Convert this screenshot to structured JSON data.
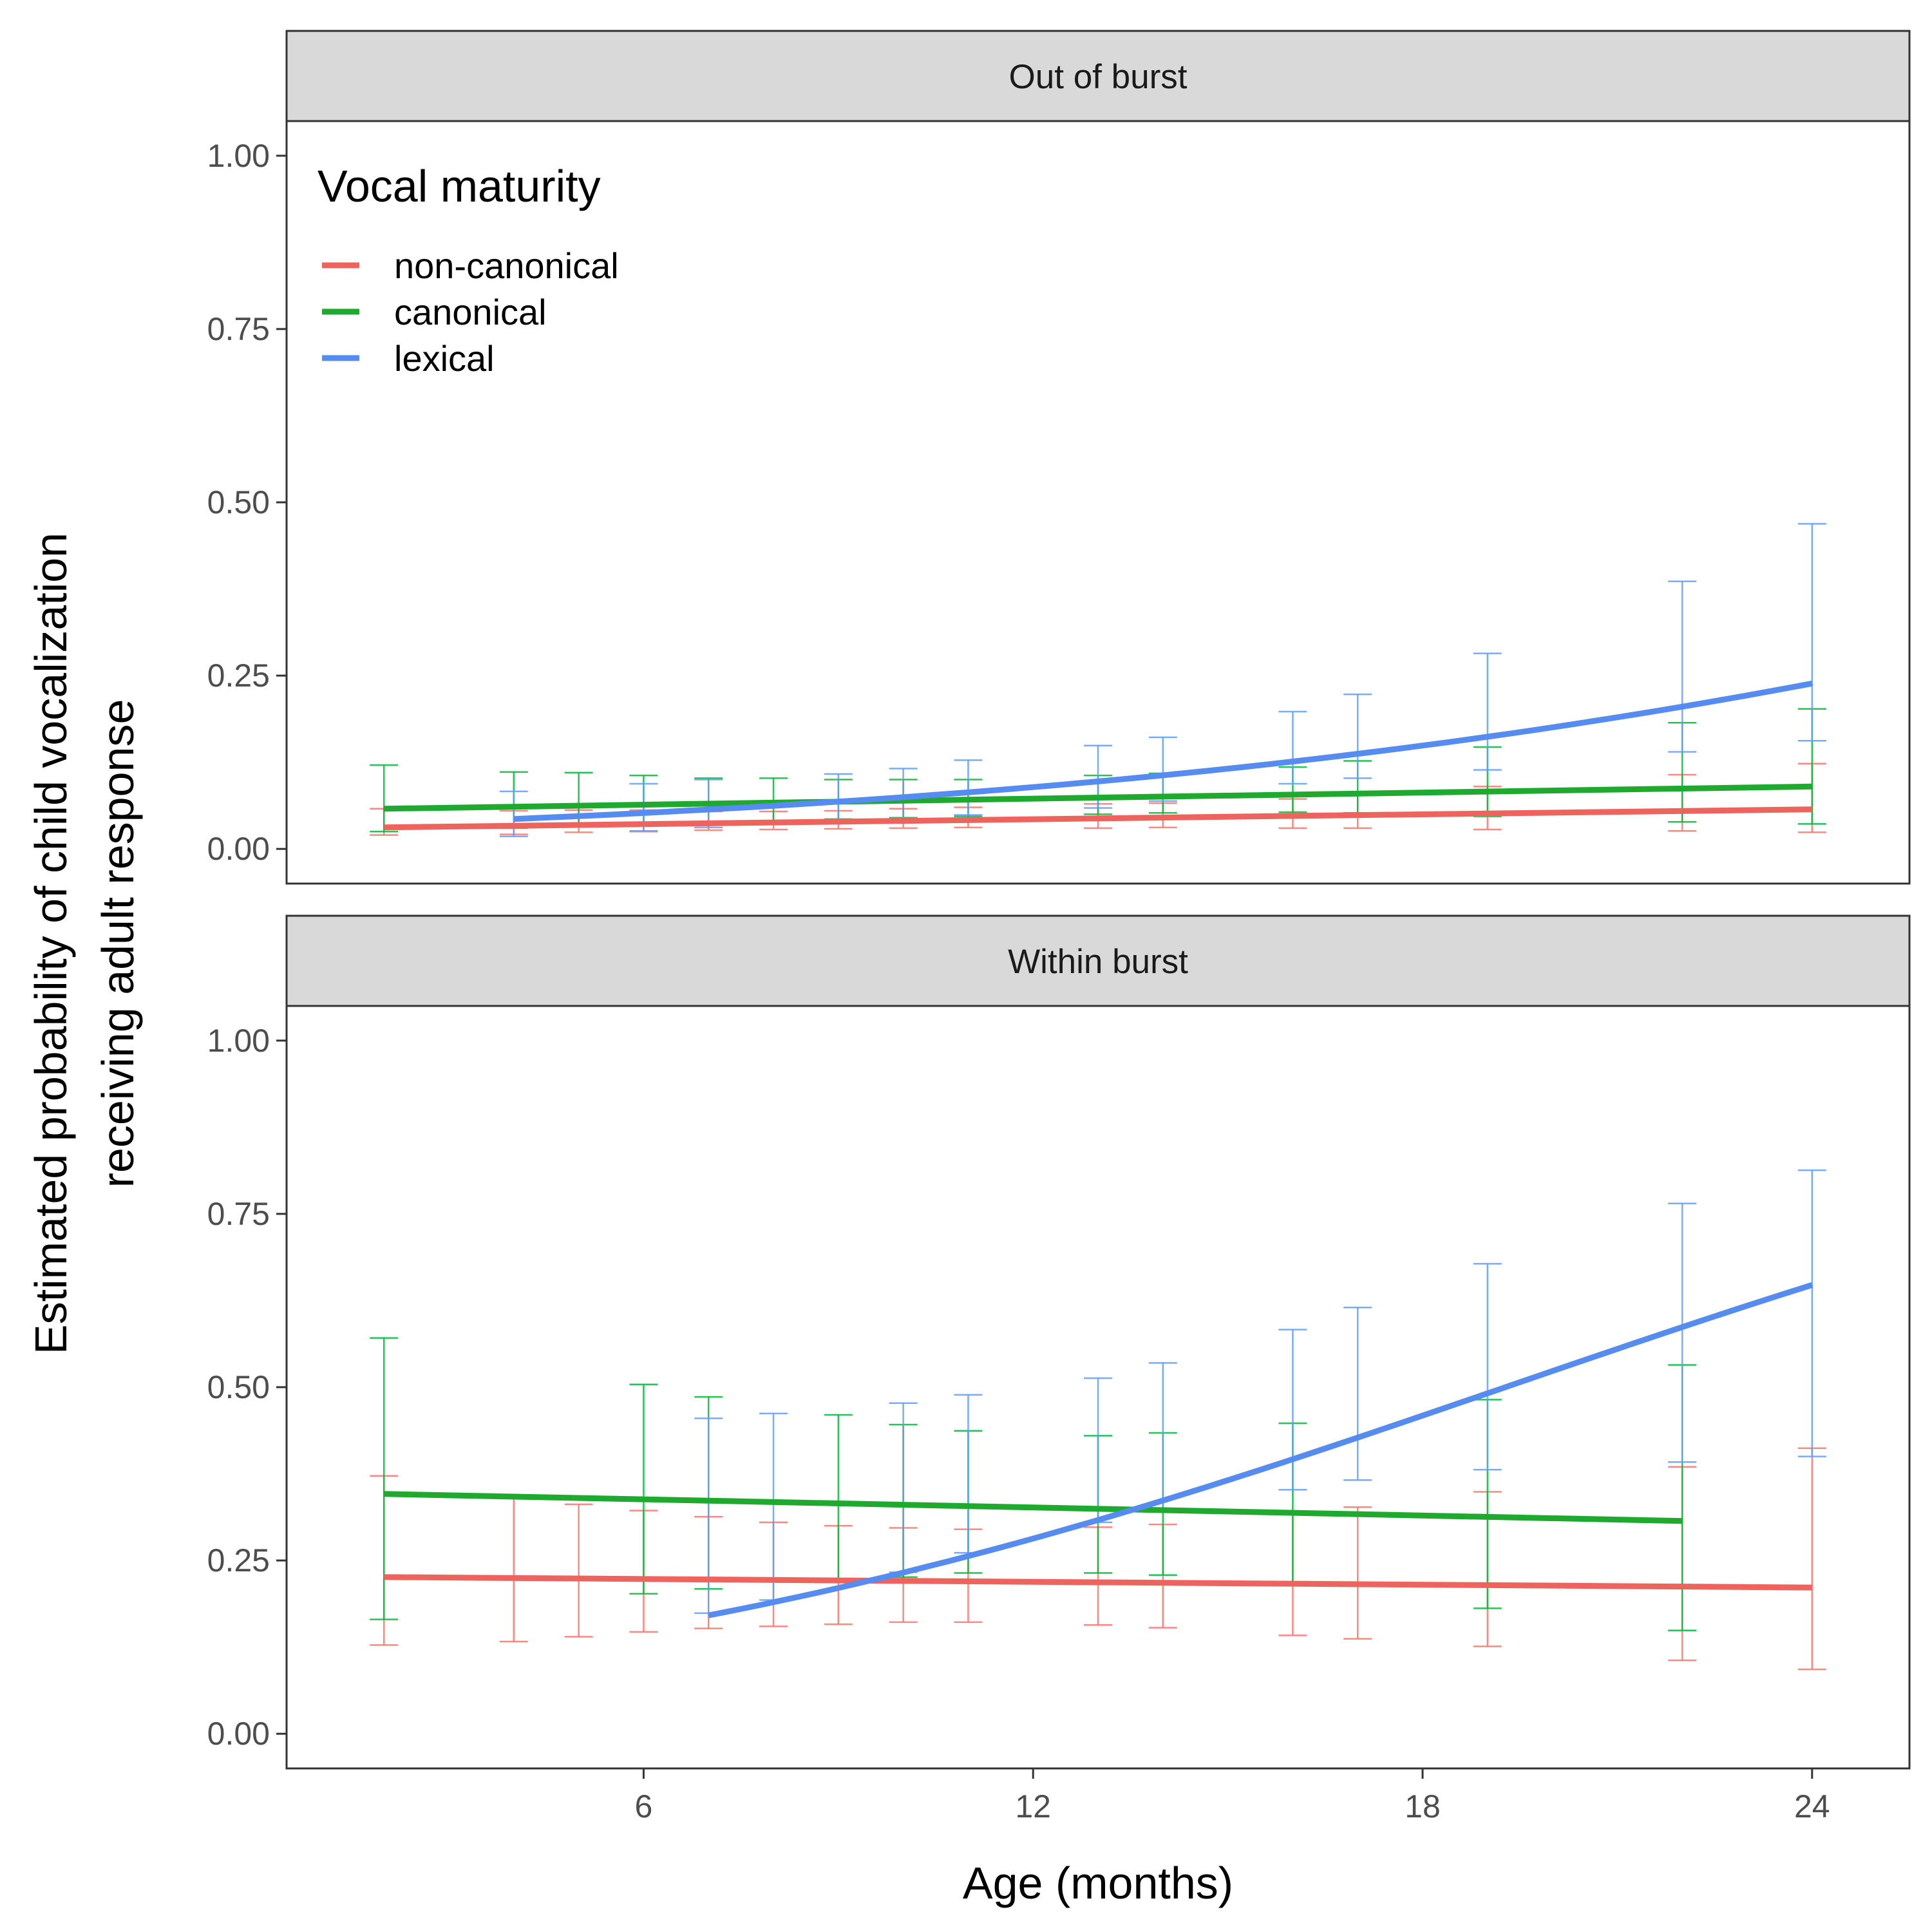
{
  "chart_data": {
    "type": "line",
    "xlabel": "Age (months)",
    "ylabel_lines": [
      "Estimated probability of child vocalization",
      "receiving adult response"
    ],
    "xlim": [
      0.5,
      25.5
    ],
    "x_ticks": [
      6,
      12,
      18,
      24
    ],
    "x_tick_labels": [
      "6",
      "12",
      "18",
      "24"
    ],
    "ylim": [
      -0.05,
      1.05
    ],
    "y_ticks": [
      0,
      0.25,
      0.5,
      0.75,
      1.0
    ],
    "y_tick_labels": [
      "0.00",
      "0.25",
      "0.50",
      "0.75",
      "1.00"
    ],
    "grid": false,
    "legend": {
      "title": "Vocal maturity",
      "placement": "top-left inside top panel",
      "entries": [
        "non-canonical",
        "canonical",
        "lexical"
      ]
    },
    "colors": {
      "non-canonical": "#F8766D",
      "canonical": "#00BA38",
      "lexical": "#619CFF"
    },
    "line_colors": {
      "non-canonical": "#ED645E",
      "canonical": "#1FAA2F",
      "lexical": "#568CF0"
    },
    "panels": [
      {
        "label": "Out of burst",
        "series": [
          {
            "name": "non-canonical",
            "x": [
              2,
              24
            ],
            "y": [
              0.031,
              0.057
            ],
            "errorbars": [
              {
                "x": 2,
                "lo": 0.02,
                "hi": 0.058
              },
              {
                "x": 4,
                "lo": 0.021,
                "hi": 0.055
              },
              {
                "x": 5,
                "lo": 0.024,
                "hi": 0.056
              },
              {
                "x": 6,
                "lo": 0.025,
                "hi": 0.056
              },
              {
                "x": 7,
                "lo": 0.027,
                "hi": 0.054
              },
              {
                "x": 8,
                "lo": 0.028,
                "hi": 0.054
              },
              {
                "x": 9,
                "lo": 0.029,
                "hi": 0.055
              },
              {
                "x": 10,
                "lo": 0.03,
                "hi": 0.058
              },
              {
                "x": 11,
                "lo": 0.031,
                "hi": 0.06
              },
              {
                "x": 13,
                "lo": 0.03,
                "hi": 0.065
              },
              {
                "x": 14,
                "lo": 0.031,
                "hi": 0.066
              },
              {
                "x": 16,
                "lo": 0.03,
                "hi": 0.072
              },
              {
                "x": 17,
                "lo": 0.03,
                "hi": 0.077
              },
              {
                "x": 19,
                "lo": 0.028,
                "hi": 0.09
              },
              {
                "x": 22,
                "lo": 0.026,
                "hi": 0.107
              },
              {
                "x": 24,
                "lo": 0.024,
                "hi": 0.123
              }
            ]
          },
          {
            "name": "canonical",
            "x": [
              2,
              24
            ],
            "y": [
              0.058,
              0.09
            ],
            "errorbars": [
              {
                "x": 2,
                "lo": 0.025,
                "hi": 0.121
              },
              {
                "x": 4,
                "lo": 0.03,
                "hi": 0.111
              },
              {
                "x": 5,
                "lo": 0.032,
                "hi": 0.11
              },
              {
                "x": 6,
                "lo": 0.035,
                "hi": 0.106
              },
              {
                "x": 7,
                "lo": 0.038,
                "hi": 0.102
              },
              {
                "x": 8,
                "lo": 0.039,
                "hi": 0.102
              },
              {
                "x": 9,
                "lo": 0.043,
                "hi": 0.1
              },
              {
                "x": 10,
                "lo": 0.045,
                "hi": 0.1
              },
              {
                "x": 11,
                "lo": 0.047,
                "hi": 0.1
              },
              {
                "x": 13,
                "lo": 0.05,
                "hi": 0.106
              },
              {
                "x": 14,
                "lo": 0.052,
                "hi": 0.109
              },
              {
                "x": 16,
                "lo": 0.053,
                "hi": 0.118
              },
              {
                "x": 17,
                "lo": 0.052,
                "hi": 0.127
              },
              {
                "x": 19,
                "lo": 0.047,
                "hi": 0.147
              },
              {
                "x": 22,
                "lo": 0.039,
                "hi": 0.182
              },
              {
                "x": 24,
                "lo": 0.036,
                "hi": 0.202
              }
            ]
          },
          {
            "name": "lexical",
            "x_range": [
              4,
              24
            ],
            "logit": [
              -3.1,
              0.097
            ],
            "errorbars": [
              {
                "x": 4,
                "lo": 0.018,
                "hi": 0.083
              },
              {
                "x": 6,
                "lo": 0.026,
                "hi": 0.094
              },
              {
                "x": 7,
                "lo": 0.031,
                "hi": 0.1
              },
              {
                "x": 9,
                "lo": 0.038,
                "hi": 0.108
              },
              {
                "x": 10,
                "lo": 0.043,
                "hi": 0.116
              },
              {
                "x": 11,
                "lo": 0.049,
                "hi": 0.128
              },
              {
                "x": 13,
                "lo": 0.059,
                "hi": 0.149
              },
              {
                "x": 14,
                "lo": 0.069,
                "hi": 0.161
              },
              {
                "x": 16,
                "lo": 0.094,
                "hi": 0.198
              },
              {
                "x": 17,
                "lo": 0.102,
                "hi": 0.223
              },
              {
                "x": 19,
                "lo": 0.114,
                "hi": 0.282
              },
              {
                "x": 22,
                "lo": 0.14,
                "hi": 0.386
              },
              {
                "x": 24,
                "lo": 0.156,
                "hi": 0.469
              }
            ]
          }
        ]
      },
      {
        "label": "Within burst",
        "series": [
          {
            "name": "non-canonical",
            "x": [
              2,
              24
            ],
            "y": [
              0.226,
              0.211
            ],
            "errorbars": [
              {
                "x": 2,
                "lo": 0.128,
                "hi": 0.372
              },
              {
                "x": 4,
                "lo": 0.133,
                "hi": 0.341
              },
              {
                "x": 5,
                "lo": 0.14,
                "hi": 0.331
              },
              {
                "x": 6,
                "lo": 0.147,
                "hi": 0.322
              },
              {
                "x": 7,
                "lo": 0.152,
                "hi": 0.313
              },
              {
                "x": 8,
                "lo": 0.155,
                "hi": 0.305
              },
              {
                "x": 9,
                "lo": 0.158,
                "hi": 0.3
              },
              {
                "x": 10,
                "lo": 0.161,
                "hi": 0.297
              },
              {
                "x": 11,
                "lo": 0.161,
                "hi": 0.295
              },
              {
                "x": 13,
                "lo": 0.157,
                "hi": 0.298
              },
              {
                "x": 14,
                "lo": 0.153,
                "hi": 0.302
              },
              {
                "x": 16,
                "lo": 0.142,
                "hi": 0.317
              },
              {
                "x": 17,
                "lo": 0.137,
                "hi": 0.327
              },
              {
                "x": 19,
                "lo": 0.126,
                "hi": 0.349
              },
              {
                "x": 22,
                "lo": 0.106,
                "hi": 0.385
              },
              {
                "x": 24,
                "lo": 0.093,
                "hi": 0.412
              }
            ]
          },
          {
            "name": "canonical",
            "x": [
              2,
              22
            ],
            "y": [
              0.346,
              0.307
            ],
            "errorbars": [
              {
                "x": 2,
                "lo": 0.165,
                "hi": 0.571
              },
              {
                "x": 6,
                "lo": 0.202,
                "hi": 0.504
              },
              {
                "x": 7,
                "lo": 0.209,
                "hi": 0.486
              },
              {
                "x": 9,
                "lo": 0.222,
                "hi": 0.46
              },
              {
                "x": 10,
                "lo": 0.226,
                "hi": 0.446
              },
              {
                "x": 11,
                "lo": 0.232,
                "hi": 0.437
              },
              {
                "x": 13,
                "lo": 0.232,
                "hi": 0.43
              },
              {
                "x": 14,
                "lo": 0.229,
                "hi": 0.434
              },
              {
                "x": 16,
                "lo": 0.215,
                "hi": 0.448
              },
              {
                "x": 19,
                "lo": 0.181,
                "hi": 0.482
              },
              {
                "x": 22,
                "lo": 0.149,
                "hi": 0.532
              }
            ]
          },
          {
            "name": "lexical",
            "x_range": [
              7,
              24
            ],
            "logit": [
              -1.58,
              0.1287
            ],
            "errorbars": [
              {
                "x": 7,
                "lo": 0.174,
                "hi": 0.455
              },
              {
                "x": 8,
                "lo": 0.193,
                "hi": 0.462
              },
              {
                "x": 10,
                "lo": 0.233,
                "hi": 0.477
              },
              {
                "x": 11,
                "lo": 0.261,
                "hi": 0.489
              },
              {
                "x": 13,
                "lo": 0.305,
                "hi": 0.513
              },
              {
                "x": 14,
                "lo": 0.32,
                "hi": 0.535
              },
              {
                "x": 16,
                "lo": 0.352,
                "hi": 0.583
              },
              {
                "x": 17,
                "lo": 0.366,
                "hi": 0.615
              },
              {
                "x": 19,
                "lo": 0.381,
                "hi": 0.678
              },
              {
                "x": 22,
                "lo": 0.392,
                "hi": 0.765
              },
              {
                "x": 24,
                "lo": 0.4,
                "hi": 0.813
              }
            ]
          }
        ]
      }
    ]
  }
}
